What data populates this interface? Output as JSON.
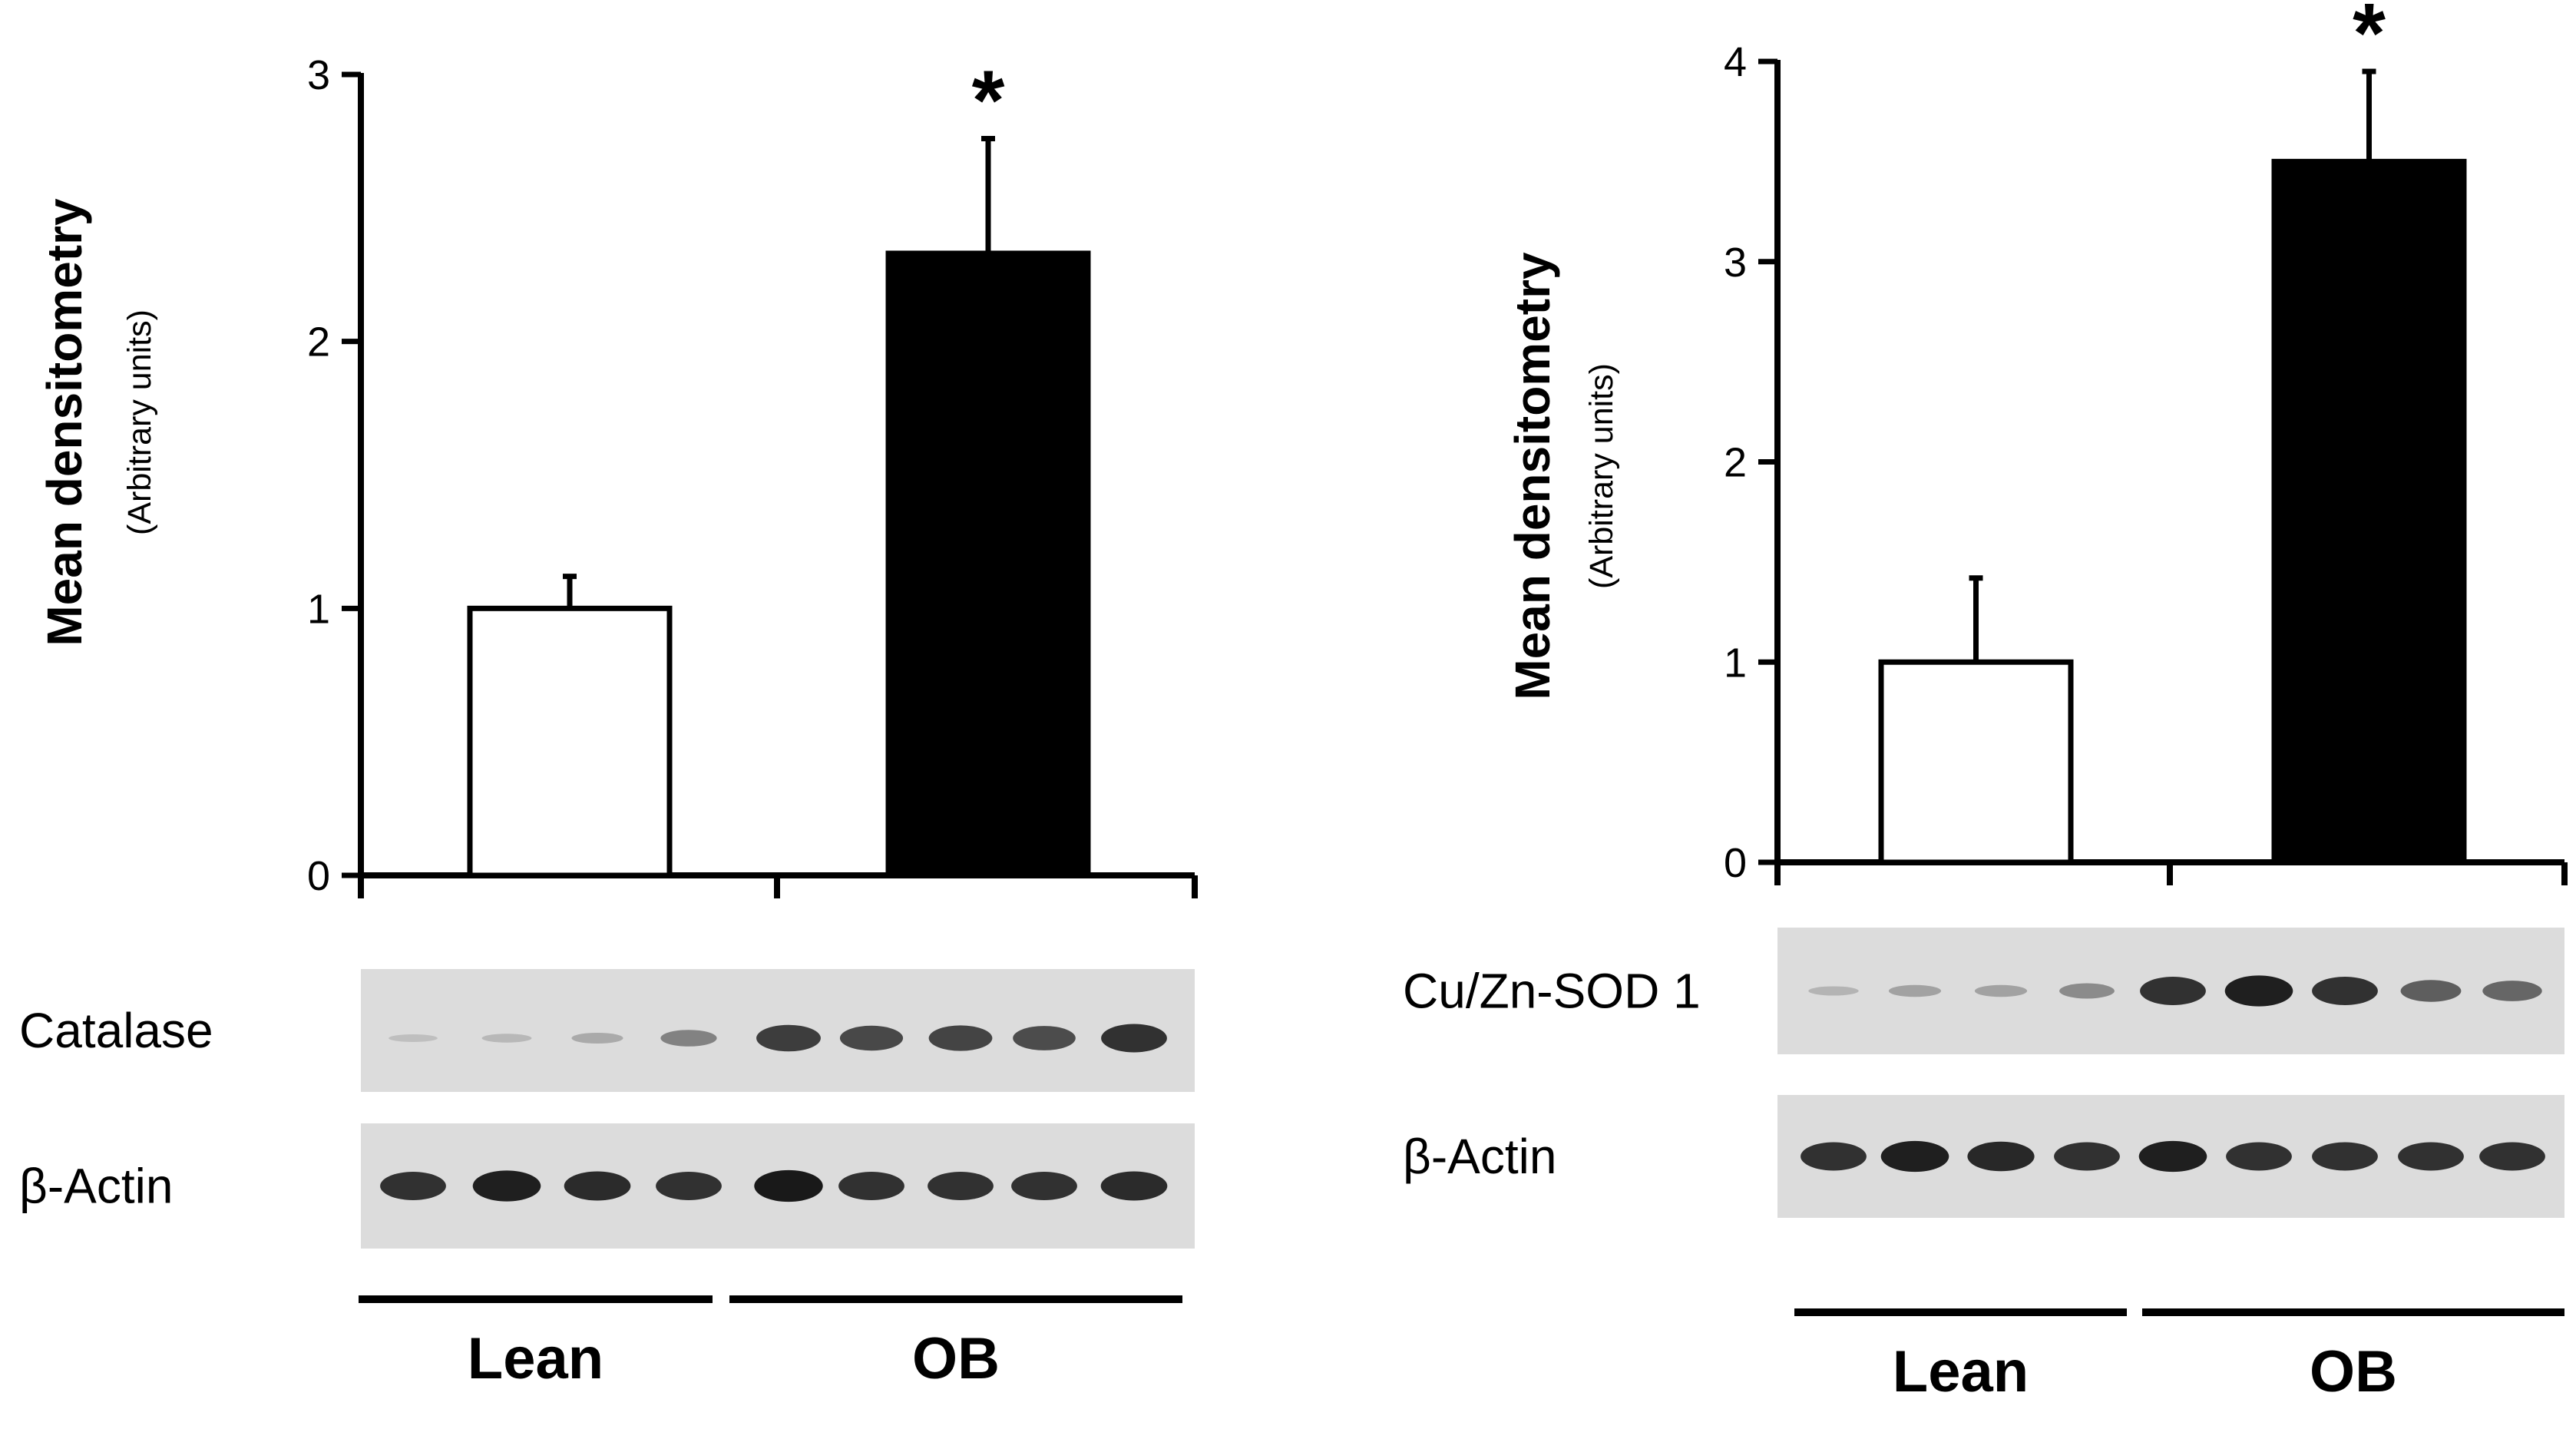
{
  "chart_data": [
    {
      "type": "bar",
      "categories": [
        "Lean",
        "OB"
      ],
      "values": [
        1.0,
        2.33
      ],
      "errors": [
        0.12,
        0.43
      ],
      "significance": [
        "",
        "*"
      ],
      "bar_colors": [
        "#ffffff",
        "#000000"
      ],
      "ylabel": "Mean densitometry",
      "ylabel_sub": "(Arbitrary units)",
      "ylim": [
        0,
        3
      ],
      "yticks": [
        "0",
        "1",
        "2",
        "3"
      ],
      "grid": false,
      "blot_rows": [
        {
          "label": "Catalase",
          "bands": [
            0.06,
            0.1,
            0.18,
            0.4,
            0.78,
            0.72,
            0.74,
            0.7,
            0.85
          ]
        },
        {
          "label": "β-Actin",
          "bands": [
            0.85,
            0.95,
            0.88,
            0.85,
            0.98,
            0.85,
            0.85,
            0.85,
            0.88
          ]
        }
      ],
      "groups": [
        {
          "label": "Lean",
          "lanes": 4
        },
        {
          "label": "OB",
          "lanes": 5
        }
      ]
    },
    {
      "type": "bar",
      "categories": [
        "Lean",
        "OB"
      ],
      "values": [
        1.0,
        3.5
      ],
      "errors": [
        0.42,
        0.45
      ],
      "significance": [
        "",
        "*"
      ],
      "bar_colors": [
        "#ffffff",
        "#000000"
      ],
      "ylabel": "Mean densitometry",
      "ylabel_sub": "(Arbitrary units)",
      "ylim": [
        0,
        4
      ],
      "yticks": [
        "0",
        "1",
        "2",
        "3",
        "4"
      ],
      "grid": false,
      "blot_rows": [
        {
          "label": "Cu/Zn-SOD 1",
          "bands": [
            0.12,
            0.22,
            0.22,
            0.35,
            0.85,
            0.95,
            0.85,
            0.6,
            0.55
          ]
        },
        {
          "label": "β-Actin",
          "bands": [
            0.85,
            0.95,
            0.9,
            0.85,
            0.95,
            0.85,
            0.85,
            0.85,
            0.85
          ]
        }
      ],
      "groups": [
        {
          "label": "Lean",
          "lanes": 4
        },
        {
          "label": "OB",
          "lanes": 5
        }
      ]
    }
  ]
}
